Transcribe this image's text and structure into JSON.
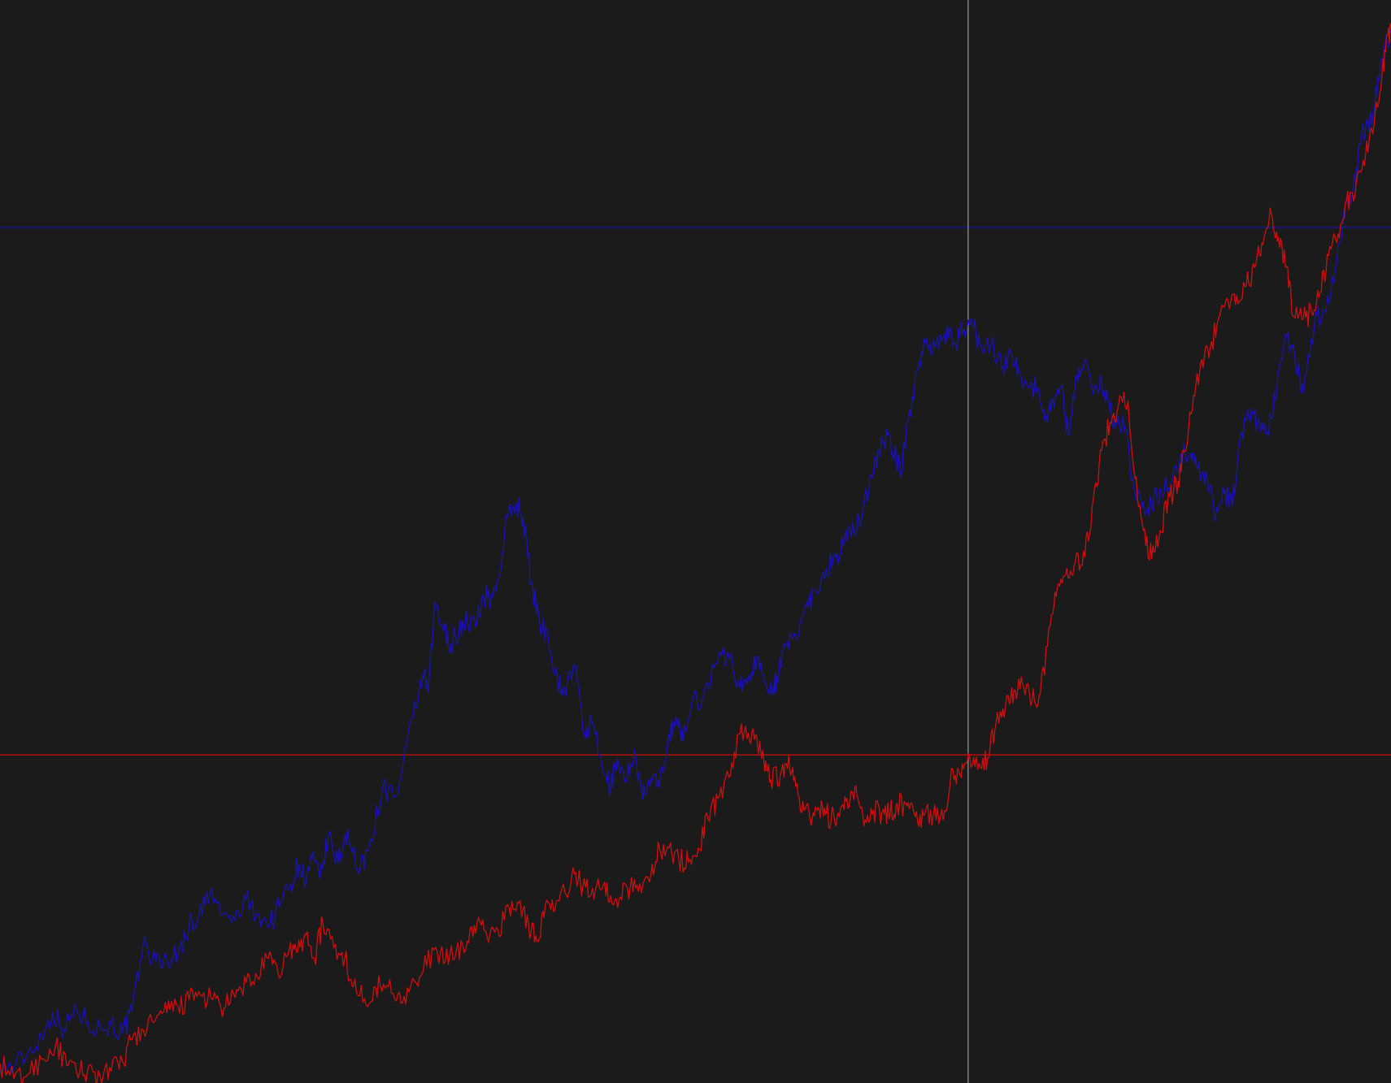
{
  "chart_data": {
    "type": "line",
    "title": "",
    "xlabel": "",
    "ylabel": "",
    "grid": false,
    "legend": "none",
    "xlim": [
      0,
      100
    ],
    "ylim": [
      0,
      100
    ],
    "series": [
      {
        "color": "#1a12b8",
        "points": [
          [
            0,
            1.6
          ],
          [
            1,
            1.5
          ],
          [
            2,
            2.8
          ],
          [
            3,
            4.3
          ],
          [
            3.8,
            6.5
          ],
          [
            4.6,
            5.0
          ],
          [
            5.5,
            6.8
          ],
          [
            6.3,
            5.7
          ],
          [
            7.2,
            5.1
          ],
          [
            8.0,
            5.4
          ],
          [
            8.8,
            4.6
          ],
          [
            9.5,
            6.6
          ],
          [
            10.3,
            12.9
          ],
          [
            11.2,
            11.2
          ],
          [
            12.0,
            11.4
          ],
          [
            12.8,
            11.9
          ],
          [
            13.6,
            14.5
          ],
          [
            14.3,
            15.4
          ],
          [
            15.1,
            17.5
          ],
          [
            16.0,
            15.5
          ],
          [
            16.9,
            15.0
          ],
          [
            17.7,
            16.9
          ],
          [
            18.5,
            15.6
          ],
          [
            19.4,
            14.6
          ],
          [
            20.2,
            16.8
          ],
          [
            20.9,
            18.4
          ],
          [
            21.5,
            20.3
          ],
          [
            22.0,
            18.5
          ],
          [
            22.4,
            20.7
          ],
          [
            23.0,
            18.8
          ],
          [
            23.6,
            22.7
          ],
          [
            24.3,
            20.3
          ],
          [
            25.0,
            23.4
          ],
          [
            25.8,
            19.3
          ],
          [
            26.5,
            21.6
          ],
          [
            27.5,
            27.2
          ],
          [
            28.6,
            26.6
          ],
          [
            29.7,
            33.7
          ],
          [
            30.4,
            37.8
          ],
          [
            30.8,
            36.1
          ],
          [
            31.3,
            44.4
          ],
          [
            31.9,
            41.7
          ],
          [
            32.4,
            40.5
          ],
          [
            33.0,
            41.7
          ],
          [
            33.6,
            42.8
          ],
          [
            34.2,
            42.1
          ],
          [
            34.7,
            45.1
          ],
          [
            35.3,
            44.7
          ],
          [
            35.8,
            46.4
          ],
          [
            36.5,
            52.3
          ],
          [
            37.1,
            53.6
          ],
          [
            37.6,
            52.3
          ],
          [
            38.2,
            46.2
          ],
          [
            38.8,
            42.4
          ],
          [
            39.4,
            41.4
          ],
          [
            40.1,
            37.0
          ],
          [
            40.6,
            36.3
          ],
          [
            41.3,
            38.6
          ],
          [
            42.0,
            32.3
          ],
          [
            42.6,
            33.2
          ],
          [
            43.3,
            29.0
          ],
          [
            43.9,
            27.3
          ],
          [
            44.4,
            30.0
          ],
          [
            45.0,
            27.8
          ],
          [
            45.6,
            30.8
          ],
          [
            46.2,
            26.2
          ],
          [
            46.8,
            28.1
          ],
          [
            47.4,
            27.3
          ],
          [
            48.0,
            31.8
          ],
          [
            48.6,
            33.8
          ],
          [
            49.1,
            31.6
          ],
          [
            49.8,
            35.4
          ],
          [
            50.5,
            35.5
          ],
          [
            51.3,
            38.3
          ],
          [
            52.3,
            39.8
          ],
          [
            53.2,
            36.5
          ],
          [
            53.8,
            37.4
          ],
          [
            54.4,
            39.2
          ],
          [
            54.9,
            37.4
          ],
          [
            55.6,
            36.6
          ],
          [
            56.0,
            37.9
          ],
          [
            56.5,
            40.3
          ],
          [
            57.2,
            41.3
          ],
          [
            57.9,
            44.0
          ],
          [
            58.6,
            45.4
          ],
          [
            59.4,
            47.5
          ],
          [
            60.1,
            48.5
          ],
          [
            60.7,
            50.1
          ],
          [
            61.4,
            50.9
          ],
          [
            62.0,
            52.7
          ],
          [
            62.6,
            56.2
          ],
          [
            63.2,
            58.2
          ],
          [
            63.8,
            59.8
          ],
          [
            64.3,
            58.1
          ],
          [
            64.8,
            56.5
          ],
          [
            65.3,
            61.2
          ],
          [
            66.0,
            66.0
          ],
          [
            66.6,
            68.8
          ],
          [
            67.2,
            67.9
          ],
          [
            67.9,
            69.2
          ],
          [
            68.6,
            68.4
          ],
          [
            69.3,
            69.6
          ],
          [
            70.0,
            69.8
          ],
          [
            70.6,
            67.7
          ],
          [
            71.3,
            68.5
          ],
          [
            72.0,
            66.0
          ],
          [
            72.7,
            67.3
          ],
          [
            73.2,
            66.1
          ],
          [
            73.9,
            64.3
          ],
          [
            74.6,
            64.1
          ],
          [
            75.2,
            61.6
          ],
          [
            75.7,
            63.1
          ],
          [
            76.3,
            64.3
          ],
          [
            76.8,
            59.8
          ],
          [
            77.4,
            65.4
          ],
          [
            78.0,
            66.8
          ],
          [
            78.6,
            63.6
          ],
          [
            79.2,
            64.9
          ],
          [
            79.8,
            62.0
          ],
          [
            80.3,
            61.0
          ],
          [
            80.9,
            60.6
          ],
          [
            81.5,
            54.9
          ],
          [
            82.1,
            53.1
          ],
          [
            82.8,
            53.5
          ],
          [
            83.5,
            54.7
          ],
          [
            84.2,
            55.5
          ],
          [
            84.9,
            58.1
          ],
          [
            85.6,
            58.1
          ],
          [
            86.1,
            56.7
          ],
          [
            86.8,
            56.0
          ],
          [
            87.4,
            52.3
          ],
          [
            88.0,
            54.4
          ],
          [
            88.6,
            53.3
          ],
          [
            89.2,
            59.9
          ],
          [
            89.8,
            61.5
          ],
          [
            90.4,
            60.9
          ],
          [
            91.1,
            60.1
          ],
          [
            91.8,
            64.1
          ],
          [
            92.4,
            69.1
          ],
          [
            93.1,
            66.9
          ],
          [
            93.7,
            63.7
          ],
          [
            94.5,
            70.1
          ],
          [
            95.1,
            71.4
          ],
          [
            95.9,
            73.9
          ],
          [
            96.6,
            80.4
          ],
          [
            97.3,
            82.6
          ],
          [
            97.8,
            86.6
          ],
          [
            98.2,
            88.5
          ],
          [
            98.7,
            89.5
          ],
          [
            99.2,
            93.0
          ],
          [
            99.6,
            96.0
          ],
          [
            100,
            97.0
          ]
        ]
      },
      {
        "color": "#d10e0e",
        "points": [
          [
            0,
            1.8
          ],
          [
            1,
            0.4
          ],
          [
            2,
            0.8
          ],
          [
            3,
            2.2
          ],
          [
            4,
            3.5
          ],
          [
            4.8,
            1.6
          ],
          [
            5.5,
            1.0
          ],
          [
            6.3,
            1.2
          ],
          [
            7.2,
            0.6
          ],
          [
            8.0,
            1.1
          ],
          [
            8.8,
            2.0
          ],
          [
            9.5,
            4.0
          ],
          [
            10.3,
            4.9
          ],
          [
            11.2,
            5.9
          ],
          [
            12.0,
            6.5
          ],
          [
            12.8,
            7.1
          ],
          [
            13.6,
            7.7
          ],
          [
            14.4,
            8.1
          ],
          [
            15.3,
            7.7
          ],
          [
            16.1,
            6.9
          ],
          [
            16.9,
            7.9
          ],
          [
            17.7,
            9.3
          ],
          [
            18.5,
            9.8
          ],
          [
            19.3,
            11.5
          ],
          [
            20.0,
            10.0
          ],
          [
            20.8,
            12.4
          ],
          [
            21.4,
            12.1
          ],
          [
            22.0,
            13.7
          ],
          [
            22.6,
            11.5
          ],
          [
            23.2,
            14.8
          ],
          [
            24.0,
            12.5
          ],
          [
            24.8,
            11.6
          ],
          [
            25.4,
            8.9
          ],
          [
            26.2,
            7.8
          ],
          [
            27.0,
            8.8
          ],
          [
            27.8,
            9.0
          ],
          [
            28.6,
            8.2
          ],
          [
            29.4,
            8.4
          ],
          [
            30.3,
            10.0
          ],
          [
            31.2,
            12.3
          ],
          [
            32.0,
            11.2
          ],
          [
            32.8,
            12.2
          ],
          [
            33.6,
            13.1
          ],
          [
            34.3,
            14.8
          ],
          [
            35.0,
            13.6
          ],
          [
            35.8,
            14.1
          ],
          [
            36.6,
            16.2
          ],
          [
            37.3,
            16.6
          ],
          [
            38.0,
            14.6
          ],
          [
            38.6,
            13.1
          ],
          [
            39.2,
            16.4
          ],
          [
            39.9,
            16.0
          ],
          [
            40.6,
            17.6
          ],
          [
            41.3,
            19.3
          ],
          [
            41.9,
            18.1
          ],
          [
            42.6,
            18.0
          ],
          [
            43.3,
            18.0
          ],
          [
            43.9,
            17.3
          ],
          [
            44.6,
            17.2
          ],
          [
            45.3,
            18.0
          ],
          [
            46.0,
            18.4
          ],
          [
            46.8,
            19.2
          ],
          [
            47.4,
            21.7
          ],
          [
            48.1,
            21.7
          ],
          [
            48.8,
            20.6
          ],
          [
            49.5,
            20.4
          ],
          [
            50.2,
            21.7
          ],
          [
            50.9,
            24.4
          ],
          [
            51.6,
            26.3
          ],
          [
            52.4,
            28.2
          ],
          [
            53.1,
            32.2
          ],
          [
            53.8,
            32.3
          ],
          [
            54.4,
            32.1
          ],
          [
            54.9,
            30.0
          ],
          [
            55.4,
            28.0
          ],
          [
            56.1,
            28.5
          ],
          [
            56.7,
            30.2
          ],
          [
            57.2,
            27.4
          ],
          [
            57.8,
            25.2
          ],
          [
            58.4,
            24.5
          ],
          [
            58.9,
            25.2
          ],
          [
            59.4,
            24.9
          ],
          [
            60.0,
            24.2
          ],
          [
            60.6,
            25.7
          ],
          [
            61.1,
            26.0
          ],
          [
            61.6,
            26.6
          ],
          [
            62.2,
            24.3
          ],
          [
            62.8,
            25.2
          ],
          [
            63.4,
            24.9
          ],
          [
            64.0,
            24.9
          ],
          [
            64.5,
            25.8
          ],
          [
            65.2,
            25.6
          ],
          [
            65.8,
            24.6
          ],
          [
            66.4,
            24.7
          ],
          [
            67.1,
            24.8
          ],
          [
            67.8,
            24.3
          ],
          [
            68.5,
            29.0
          ],
          [
            69.1,
            28.2
          ],
          [
            69.7,
            30.3
          ],
          [
            70.4,
            29.5
          ],
          [
            71.0,
            30.0
          ],
          [
            71.6,
            33.2
          ],
          [
            72.3,
            35.0
          ],
          [
            72.9,
            36.3
          ],
          [
            73.5,
            36.9
          ],
          [
            74.2,
            35.4
          ],
          [
            74.8,
            36.0
          ],
          [
            75.5,
            42.2
          ],
          [
            76.1,
            46.1
          ],
          [
            76.7,
            47.5
          ],
          [
            77.3,
            48.1
          ],
          [
            78.0,
            48.6
          ],
          [
            78.6,
            53.9
          ],
          [
            79.2,
            58.4
          ],
          [
            79.8,
            61.0
          ],
          [
            80.4,
            62.5
          ],
          [
            81.1,
            63.0
          ],
          [
            81.6,
            55.8
          ],
          [
            82.2,
            51.0
          ],
          [
            82.8,
            48.4
          ],
          [
            83.4,
            51.0
          ],
          [
            84.1,
            54.1
          ],
          [
            84.7,
            55.6
          ],
          [
            85.2,
            58.3
          ],
          [
            85.8,
            63.5
          ],
          [
            86.4,
            66.8
          ],
          [
            87.0,
            67.9
          ],
          [
            87.7,
            70.9
          ],
          [
            88.3,
            72.1
          ],
          [
            88.9,
            72.7
          ],
          [
            89.6,
            73.6
          ],
          [
            90.2,
            75.3
          ],
          [
            90.8,
            77.4
          ],
          [
            91.4,
            80.2
          ],
          [
            91.9,
            78.1
          ],
          [
            92.5,
            75.4
          ],
          [
            93.0,
            70.8
          ],
          [
            93.7,
            70.6
          ],
          [
            94.3,
            71.1
          ],
          [
            94.9,
            73.0
          ],
          [
            95.5,
            76.4
          ],
          [
            96.2,
            78.4
          ],
          [
            96.8,
            81.4
          ],
          [
            97.4,
            81.9
          ],
          [
            98.0,
            85.2
          ],
          [
            98.6,
            88.2
          ],
          [
            99.2,
            91.4
          ],
          [
            99.6,
            95.2
          ],
          [
            100,
            97.4
          ]
        ]
      }
    ],
    "reference_lines": [
      {
        "orientation": "horizontal",
        "y": 79.0,
        "color": "#1a12b8"
      },
      {
        "orientation": "horizontal",
        "y": 30.3,
        "color": "#d10e0e"
      },
      {
        "orientation": "vertical",
        "x": 69.6,
        "color": "#9c9c9c"
      }
    ]
  }
}
